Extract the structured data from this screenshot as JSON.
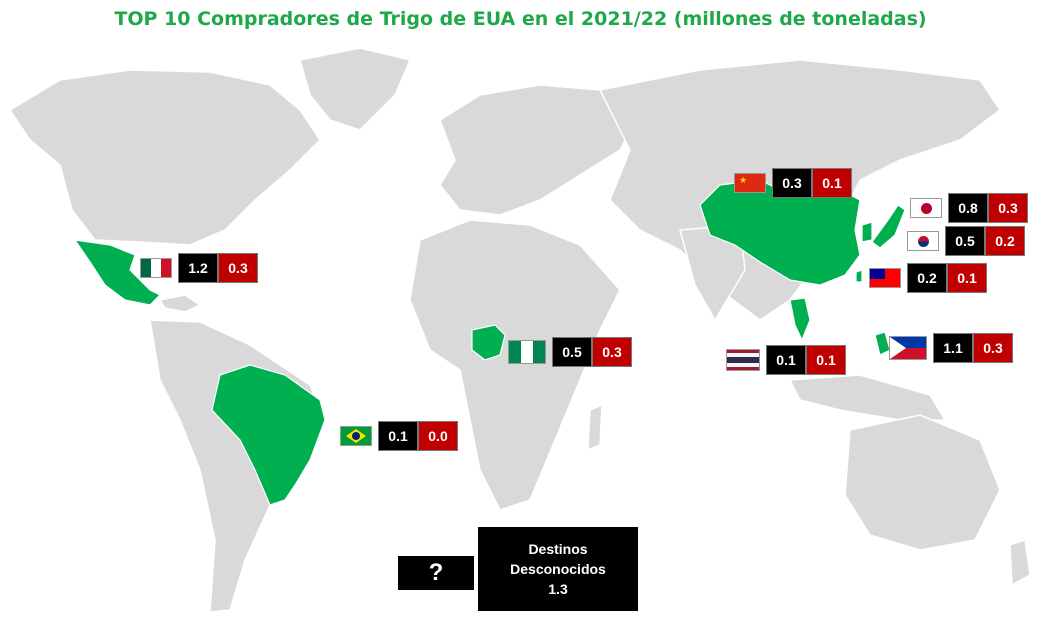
{
  "title": "TOP 10 Compradores de Trigo de EUA en el 2021/22 (millones de toneladas)",
  "colors": {
    "highlight": "#00b050",
    "land": "#d9d9d9",
    "black_box": "#000000",
    "red_box": "#c00000"
  },
  "countries": [
    {
      "key": "mexico",
      "flag": "mexico-flag-icon",
      "black": "1.2",
      "red": "0.3"
    },
    {
      "key": "china",
      "flag": "china-flag-icon",
      "black": "0.3",
      "red": "0.1"
    },
    {
      "key": "japan",
      "flag": "japan-flag-icon",
      "black": "0.8",
      "red": "0.3"
    },
    {
      "key": "korea",
      "flag": "korea-flag-icon",
      "black": "0.5",
      "red": "0.2"
    },
    {
      "key": "taiwan",
      "flag": "taiwan-flag-icon",
      "black": "0.2",
      "red": "0.1"
    },
    {
      "key": "nigeria",
      "flag": "nigeria-flag-icon",
      "black": "0.5",
      "red": "0.3"
    },
    {
      "key": "philippines",
      "flag": "philippines-flag-icon",
      "black": "1.1",
      "red": "0.3"
    },
    {
      "key": "thailand",
      "flag": "thailand-flag-icon",
      "black": "0.1",
      "red": "0.1"
    },
    {
      "key": "brazil",
      "flag": "brazil-flag-icon",
      "black": "0.1",
      "red": "0.0"
    }
  ],
  "unknown": {
    "icon": "?",
    "line1": "Destinos",
    "line2": "Desconocidos",
    "value": "1.3"
  }
}
